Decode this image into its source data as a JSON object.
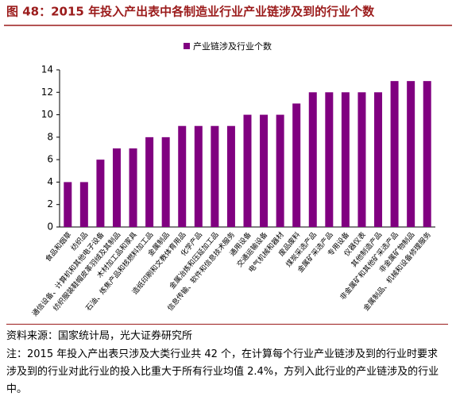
{
  "chart_data": {
    "type": "bar",
    "title": "图 48：2015 年投入产出表中各制造业行业产业链涉及到的行业个数",
    "legend": "产业链涉及行业个数",
    "color": "#800080",
    "categories": [
      "食品和烟草",
      "纺织品",
      "通信设备、计算机和其他电子设备",
      "纺织服装鞋帽皮革羽绒及其制品",
      "木材加工品和家具",
      "石油、炼焦产品和核燃料加工品",
      "金属制品",
      "造纸印刷和文教体育用品",
      "化学产品",
      "金属冶炼和压延加工品",
      "信息传输、软件和信息技术服务",
      "通用设备",
      "交通运输设备",
      "电气机械和器材",
      "废品废料",
      "煤炭采选产品",
      "金属矿采选产品",
      "专用设备",
      "仪器仪表",
      "其他制造产品",
      "非金属矿和其他矿采选产品",
      "非金属矿物制品",
      "金属制品、机械和设备修理服务"
    ],
    "values": [
      4,
      4,
      6,
      7,
      7,
      8,
      8,
      9,
      9,
      9,
      9,
      10,
      10,
      10,
      11,
      12,
      12,
      12,
      12,
      12,
      13,
      13,
      13
    ],
    "ylim": [
      0,
      14
    ],
    "yticks": [
      0,
      2,
      4,
      6,
      8,
      10,
      12,
      14
    ],
    "grid": false,
    "source": "资料来源：国家统计局，光大证券研究所",
    "note": "注：2015 年投入产出表只涉及大类行业共 42 个，在计算每个行业产业链涉及到的行业时要求涉及到的行业对此行业的投入比重大于所有行业均值 2.4%，方列入此行业的产业链涉及的行业中。"
  }
}
